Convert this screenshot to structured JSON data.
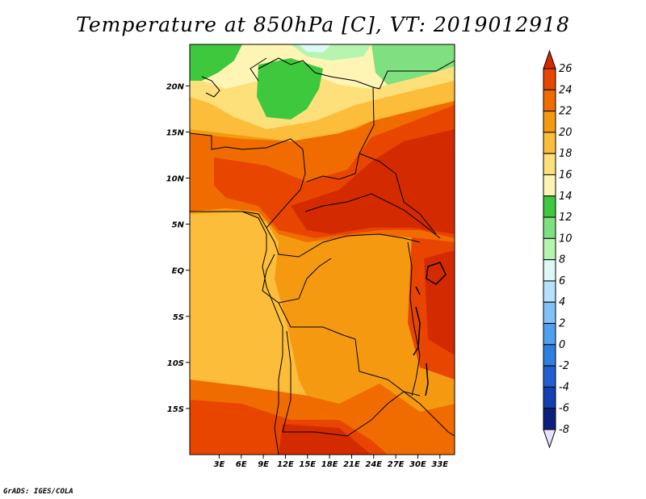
{
  "title": "Temperature at 850hPa [C], VT: 2019012918",
  "credit": "GrADS: IGES/COLA",
  "map": {
    "projection": "lat-lon",
    "lon_range": [
      -1,
      35
    ],
    "lat_range": [
      -20,
      24.5
    ],
    "lat_ticks": [
      {
        "value": 20,
        "label": "20N"
      },
      {
        "value": 15,
        "label": "15N"
      },
      {
        "value": 10,
        "label": "10N"
      },
      {
        "value": 5,
        "label": "5N"
      },
      {
        "value": 0,
        "label": "EQ"
      },
      {
        "value": -5,
        "label": "5S"
      },
      {
        "value": -10,
        "label": "10S"
      },
      {
        "value": -15,
        "label": "15S"
      }
    ],
    "lon_ticks": [
      {
        "value": 3,
        "label": "3E"
      },
      {
        "value": 6,
        "label": "6E"
      },
      {
        "value": 9,
        "label": "9E"
      },
      {
        "value": 12,
        "label": "12E"
      },
      {
        "value": 15,
        "label": "15E"
      },
      {
        "value": 18,
        "label": "18E"
      },
      {
        "value": 21,
        "label": "21E"
      },
      {
        "value": 24,
        "label": "24E"
      },
      {
        "value": 27,
        "label": "27E"
      },
      {
        "value": 30,
        "label": "30E"
      },
      {
        "value": 33,
        "label": "33E"
      }
    ]
  },
  "colorbar": {
    "levels": [
      "26",
      "24",
      "22",
      "20",
      "18",
      "16",
      "14",
      "12",
      "10",
      "8",
      "6",
      "4",
      "2",
      "0",
      "-2",
      "-4",
      "-6",
      "-8"
    ],
    "colors": [
      "#d42a00",
      "#e84600",
      "#f06c00",
      "#f59a10",
      "#fbbd3a",
      "#fde07a",
      "#fef5b4",
      "#3dc83d",
      "#7fe07f",
      "#b6f5b0",
      "#dcf9f5",
      "#b6e0fb",
      "#82c1f7",
      "#4e9ff0",
      "#2e7fe2",
      "#1f5fd2",
      "#1140b2",
      "#0a1f80",
      "#0a0a60"
    ],
    "top_color": "#d42a00",
    "bottom_color": "#e4e4ff"
  }
}
